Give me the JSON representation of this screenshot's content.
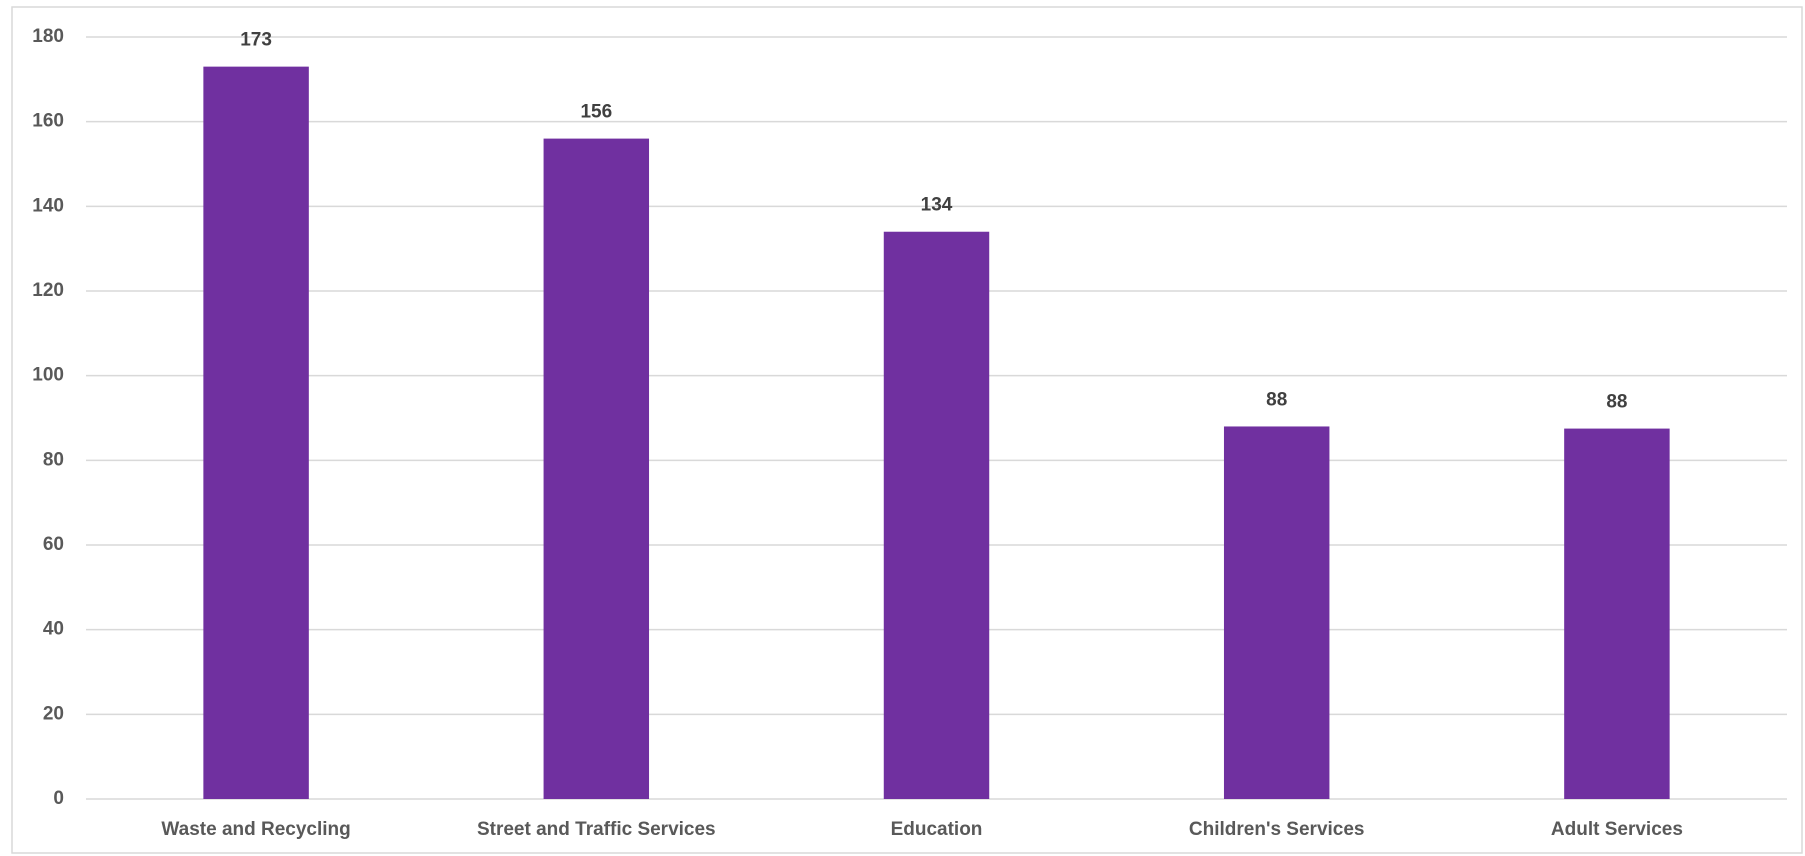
{
  "chart_data": {
    "type": "bar",
    "categories": [
      "Waste and Recycling",
      "Street and Traffic Services",
      "Education",
      "Children's Services",
      "Adult Services"
    ],
    "values": [
      173,
      156,
      134,
      88,
      87.5
    ],
    "value_labels": [
      "173",
      "156",
      "134",
      "88",
      "88"
    ],
    "color": "#7030a0",
    "ylim": [
      0,
      180
    ],
    "yticks": [
      0,
      20,
      40,
      60,
      80,
      100,
      120,
      140,
      160,
      180
    ],
    "grid": true
  }
}
